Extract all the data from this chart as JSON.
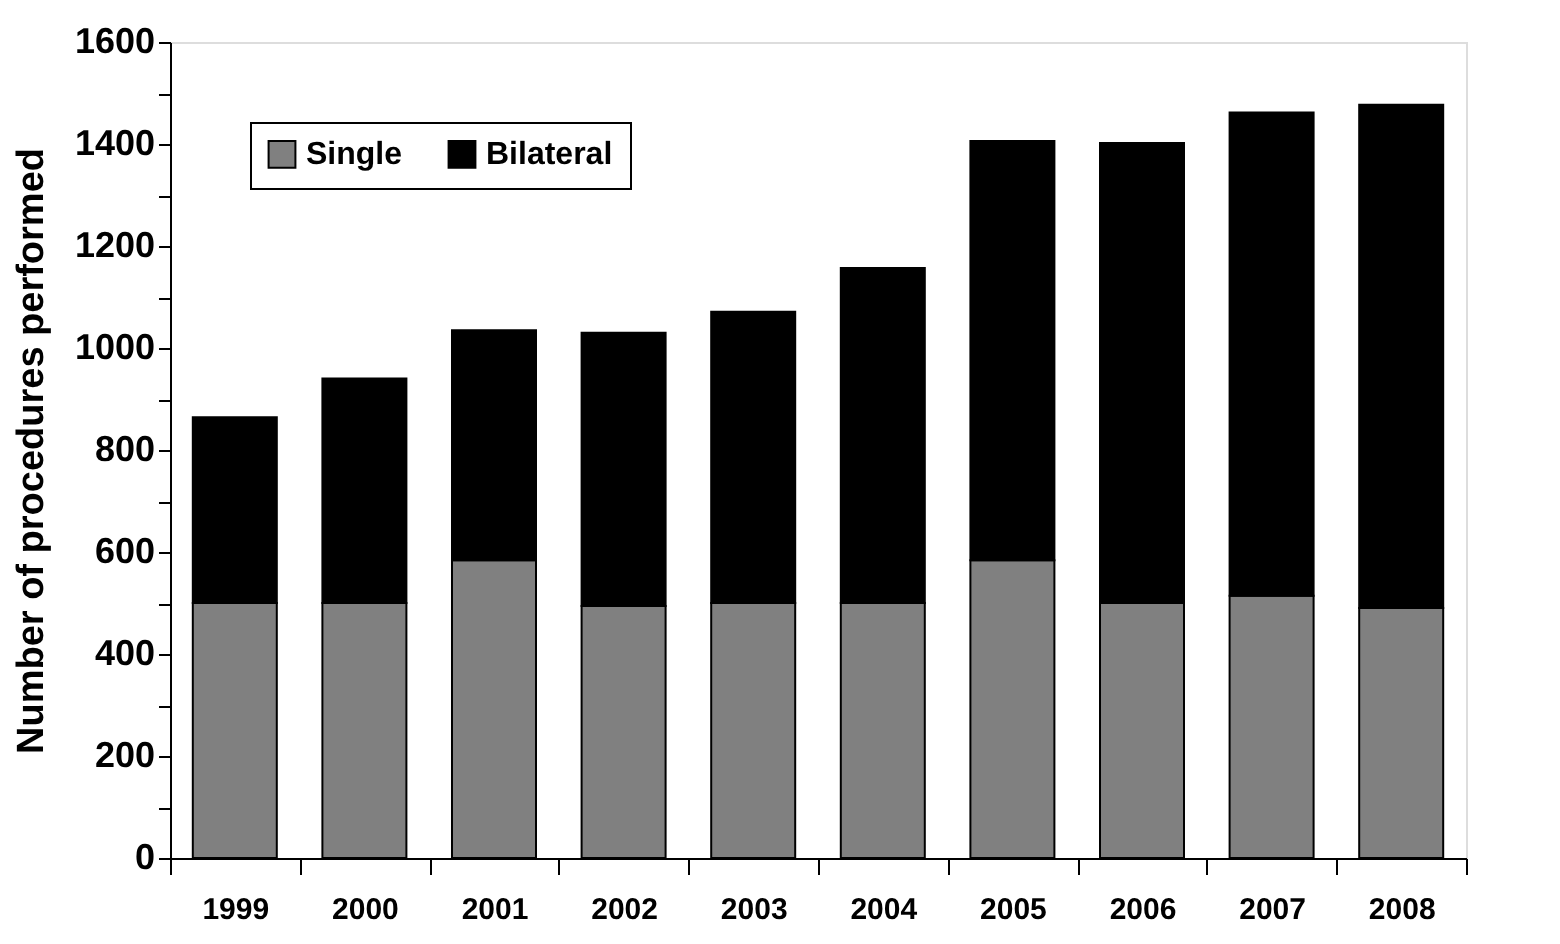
{
  "chart_data": {
    "type": "bar",
    "stacked": true,
    "ylabel": "Number of procedures performed",
    "categories": [
      "1999",
      "2000",
      "2001",
      "2002",
      "2003",
      "2004",
      "2005",
      "2006",
      "2007",
      "2008"
    ],
    "series": [
      {
        "name": "Single",
        "color": "#808080",
        "values": [
          500,
          500,
          584,
          494,
          500,
          500,
          584,
          500,
          514,
          490
        ]
      },
      {
        "name": "Bilateral",
        "color": "#000000",
        "values": [
          364,
          440,
          451,
          536,
          571,
          657,
          822,
          902,
          948,
          987
        ]
      }
    ],
    "ylim": [
      0,
      1600
    ],
    "yticks": [
      0,
      {
        "value": 100,
        "label": null
      },
      200,
      {
        "value": 300,
        "label": null
      },
      400,
      {
        "value": 500,
        "label": null
      },
      600,
      {
        "value": 700,
        "label": null
      },
      800,
      {
        "value": 900,
        "label": null
      },
      1000,
      {
        "value": 1100,
        "label": null
      },
      1200,
      {
        "value": 1300,
        "label": null
      },
      1400,
      {
        "value": 1500,
        "label": null
      },
      1600
    ],
    "grid": false,
    "legend": "top left"
  }
}
